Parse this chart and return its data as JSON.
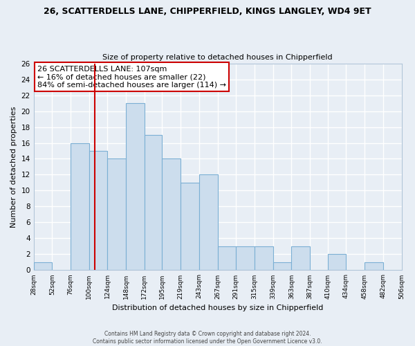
{
  "title_line1": "26, SCATTERDELLS LANE, CHIPPERFIELD, KINGS LANGLEY, WD4 9ET",
  "title_line2": "Size of property relative to detached houses in Chipperfield",
  "xlabel": "Distribution of detached houses by size in Chipperfield",
  "ylabel": "Number of detached properties",
  "bin_edges": [
    28,
    52,
    76,
    100,
    124,
    148,
    172,
    195,
    219,
    243,
    267,
    291,
    315,
    339,
    363,
    387,
    410,
    434,
    458,
    482,
    506
  ],
  "bar_heights": [
    1,
    0,
    16,
    15,
    14,
    21,
    17,
    14,
    11,
    12,
    3,
    3,
    3,
    1,
    3,
    0,
    2,
    0,
    1,
    0
  ],
  "bar_color": "#ccdded",
  "bar_edge_color": "#7bafd4",
  "property_line_x": 107,
  "property_line_color": "#cc0000",
  "ylim": [
    0,
    26
  ],
  "yticks": [
    0,
    2,
    4,
    6,
    8,
    10,
    12,
    14,
    16,
    18,
    20,
    22,
    24,
    26
  ],
  "annotation_text_line1": "26 SCATTERDELLS LANE: 107sqm",
  "annotation_text_line2": "← 16% of detached houses are smaller (22)",
  "annotation_text_line3": "84% of semi-detached houses are larger (114) →",
  "annotation_box_color": "#ffffff",
  "annotation_box_edge_color": "#cc0000",
  "footnote_line1": "Contains HM Land Registry data © Crown copyright and database right 2024.",
  "footnote_line2": "Contains public sector information licensed under the Open Government Licence v3.0.",
  "background_color": "#e8eef5",
  "plot_bg_color": "#e8eef5",
  "grid_color": "#ffffff",
  "grid_linewidth": 1.0
}
